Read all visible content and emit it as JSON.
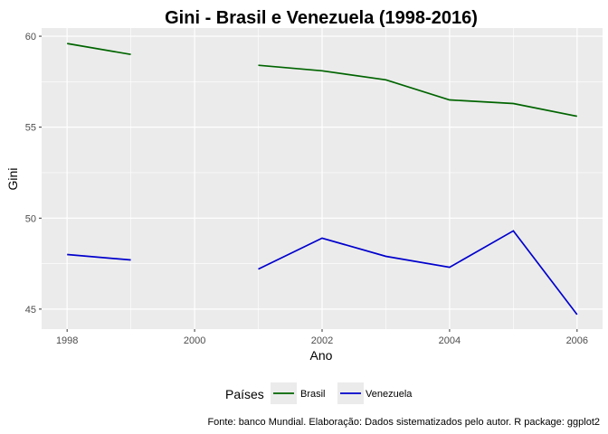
{
  "chart_data": {
    "type": "line",
    "title": "Gini - Brasil e Venezuela (1998-2016)",
    "xlabel": "Ano",
    "ylabel": "Gini",
    "xlim": [
      1997.6,
      2006.4
    ],
    "ylim": [
      43.9,
      60.45
    ],
    "x_ticks": [
      1998,
      2000,
      2002,
      2004,
      2006
    ],
    "y_ticks": [
      45,
      50,
      55,
      60
    ],
    "grid": true,
    "legend": {
      "title": "Países",
      "position": "bottom"
    },
    "caption": "Fonte: banco Mundial. Elaboração: Dados sistematizados pelo autor. R package: ggplot2",
    "series": [
      {
        "name": "Brasil",
        "color": "#006400",
        "points": [
          [
            1998,
            59.6
          ],
          [
            1999,
            59.0
          ],
          [
            2000,
            null
          ],
          [
            2001,
            58.4
          ],
          [
            2002,
            58.1
          ],
          [
            2003,
            57.6
          ],
          [
            2004,
            56.5
          ],
          [
            2005,
            56.3
          ],
          [
            2006,
            55.6
          ]
        ]
      },
      {
        "name": "Venezuela",
        "color": "#0000cd",
        "points": [
          [
            1998,
            48.0
          ],
          [
            1999,
            47.7
          ],
          [
            2000,
            null
          ],
          [
            2001,
            47.2
          ],
          [
            2002,
            48.9
          ],
          [
            2003,
            47.9
          ],
          [
            2004,
            47.3
          ],
          [
            2005,
            49.3
          ],
          [
            2006,
            44.7
          ]
        ]
      }
    ]
  }
}
